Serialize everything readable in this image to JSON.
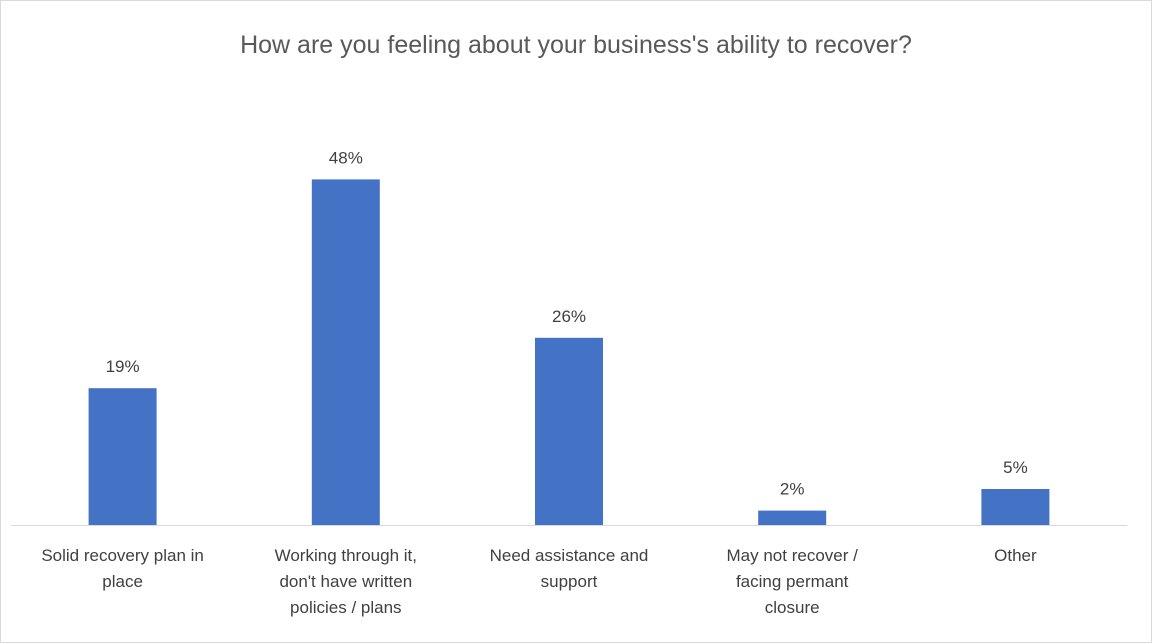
{
  "chart_data": {
    "type": "bar",
    "title": "How are you feeling about your business's ability to recover?",
    "categories": [
      "Solid recovery plan in\nplace",
      "Working through it,\ndon't have written\npolicies / plans",
      "Need assistance and\nsupport",
      "May not recover /\nfacing permant\nclosure",
      "Other"
    ],
    "values": [
      19,
      48,
      26,
      2,
      5
    ],
    "data_labels": [
      "19%",
      "48%",
      "26%",
      "2%",
      "5%"
    ],
    "value_unit": "%",
    "ylim": [
      0,
      50
    ],
    "grid": false,
    "legend": "none",
    "bar_color": "#4472c4"
  }
}
